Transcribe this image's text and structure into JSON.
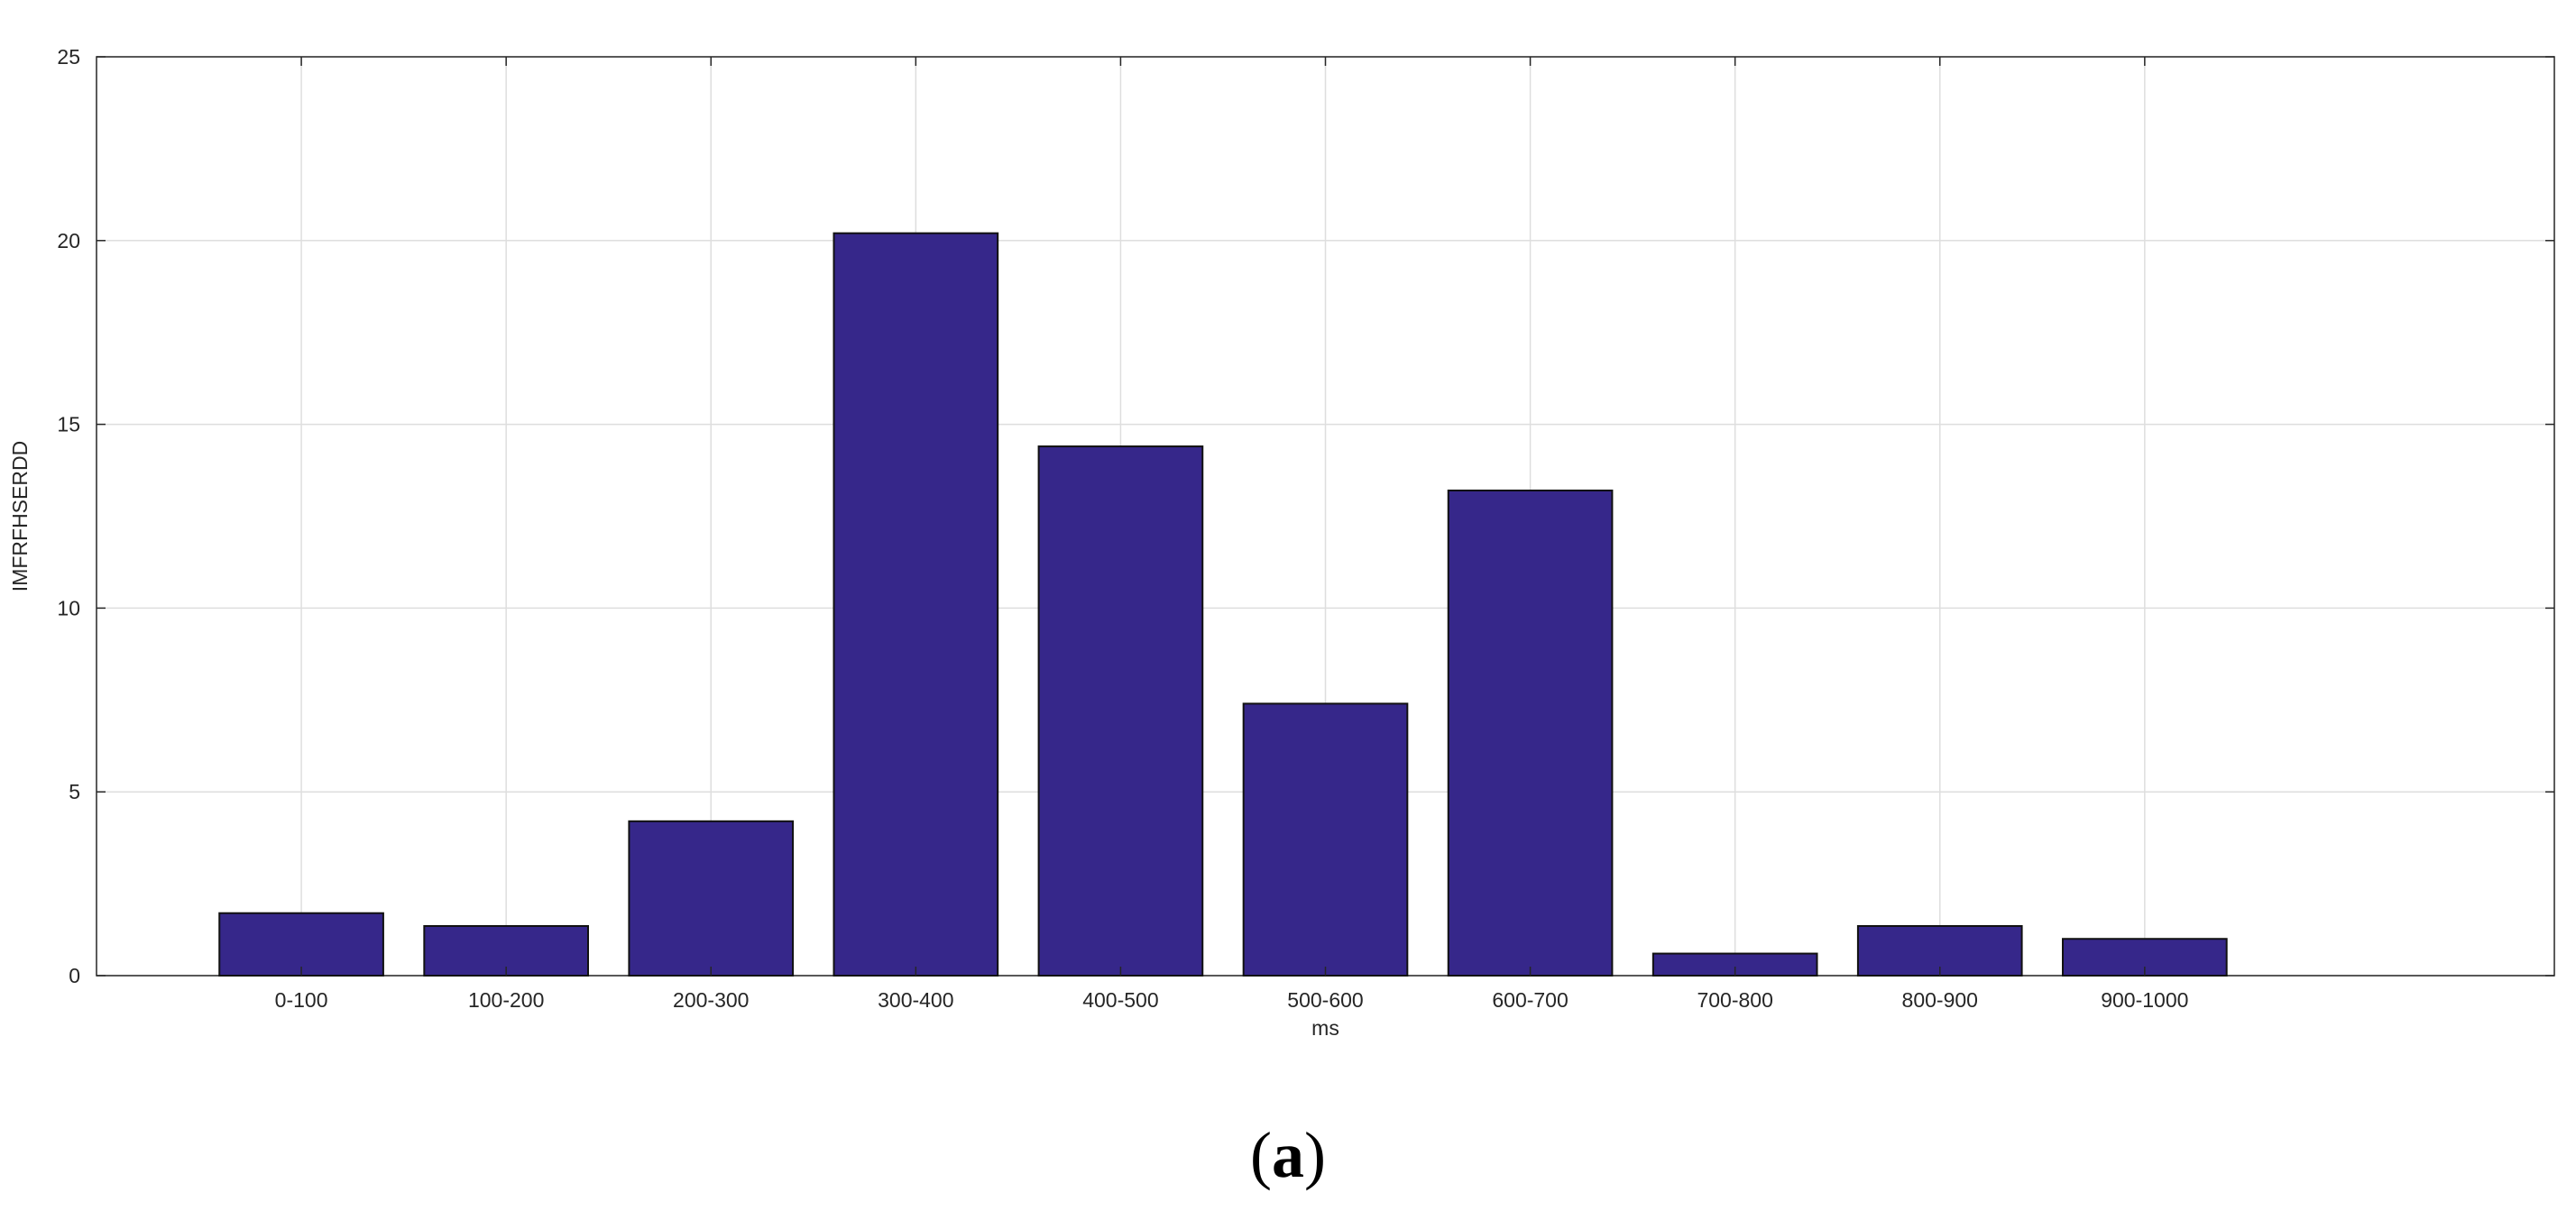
{
  "chart_data": {
    "type": "bar",
    "categories": [
      "0-100",
      "100-200",
      "200-300",
      "300-400",
      "400-500",
      "500-600",
      "600-700",
      "700-800",
      "800-900",
      "900-1000"
    ],
    "values": [
      1.7,
      1.35,
      4.2,
      20.2,
      14.4,
      7.4,
      13.2,
      0.6,
      1.35,
      1.0
    ],
    "xlabel": "ms",
    "ylabel": "IMFRFHSERDD",
    "ylim": [
      0,
      25
    ],
    "yticks": [
      0,
      5,
      10,
      15,
      20,
      25
    ],
    "xlim": [
      0,
      12
    ],
    "grid": true,
    "bar_color": "#36278a",
    "bar_edge_color": "#111111",
    "panel_label": {
      "open": "(",
      "letter": "a",
      "close": ")"
    }
  }
}
